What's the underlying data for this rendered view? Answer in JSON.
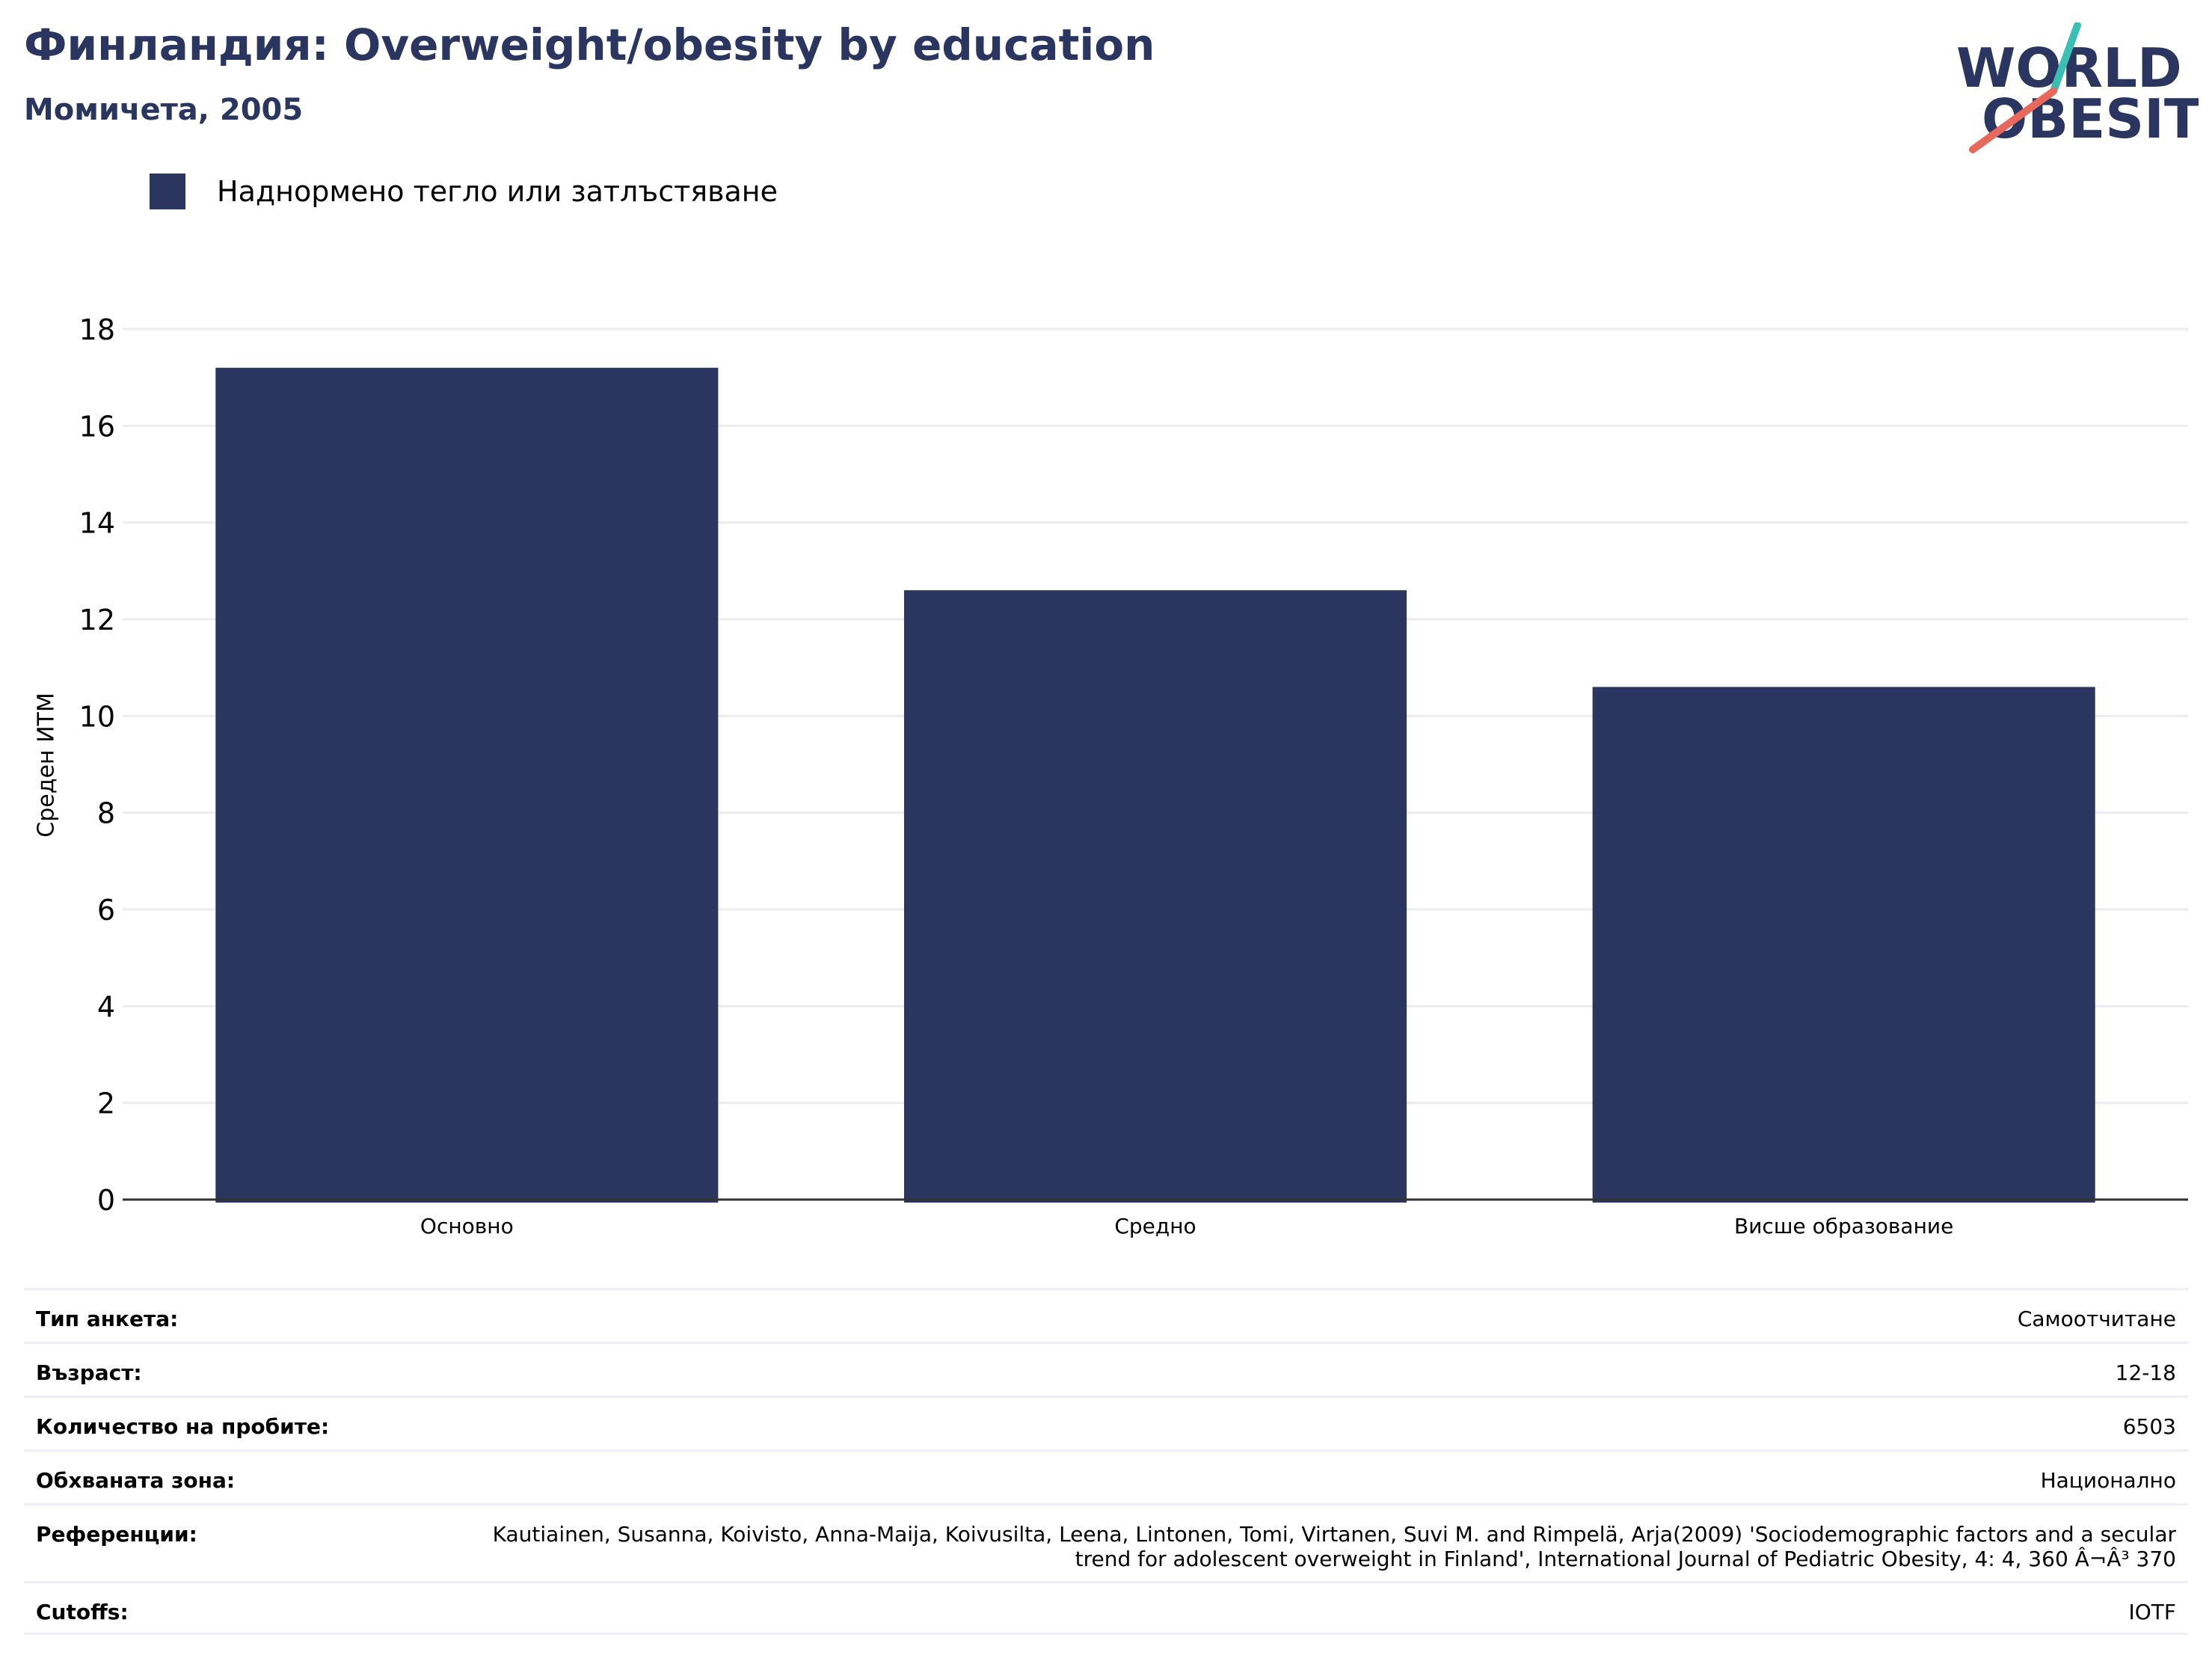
{
  "header": {
    "title": "Финландия: Overweight/obesity by education",
    "subtitle": "Момичета, 2005"
  },
  "logo": {
    "line1": "WORLD",
    "line2": "OBESITY",
    "colors": {
      "text": "#2a365f",
      "slash_top": "#3bbfb4",
      "slash_bottom": "#e8685b"
    }
  },
  "colors": {
    "bar": "#2a365f",
    "grid": "#ececec",
    "axis": "#333333"
  },
  "chart_data": {
    "type": "bar",
    "categories": [
      "Основно",
      "Средно",
      "Висше образование"
    ],
    "series": [
      {
        "name": "Наднормено тегло или затлъстяване",
        "values": [
          17.2,
          12.6,
          10.6
        ]
      }
    ],
    "ylabel": "Среден ИТМ",
    "xlabel": "",
    "ylim": [
      0,
      18
    ],
    "yticks": [
      0,
      2,
      4,
      6,
      8,
      10,
      12,
      14,
      16,
      18
    ],
    "grid": true,
    "legend_position": "top-left"
  },
  "meta": {
    "rows": [
      {
        "key": "Тип анкета:",
        "value": "Самоотчитане"
      },
      {
        "key": "Възраст:",
        "value": "12-18"
      },
      {
        "key": "Количество на пробите:",
        "value": "6503"
      },
      {
        "key": "Обхваната зона:",
        "value": "Национално"
      },
      {
        "key": "Референции:",
        "value": "Kautiainen, Susanna, Koivisto, Anna-Maija, Koivusilta, Leena, Lintonen, Tomi, Virtanen, Suvi M. and Rimpelä, Arja(2009) 'Sociodemographic factors and a secular trend for adolescent overweight in Finland', International Journal of Pediatric Obesity, 4: 4, 360 Â¬Â³ 370"
      },
      {
        "key": "Cutoffs:",
        "value": "IOTF"
      }
    ]
  }
}
